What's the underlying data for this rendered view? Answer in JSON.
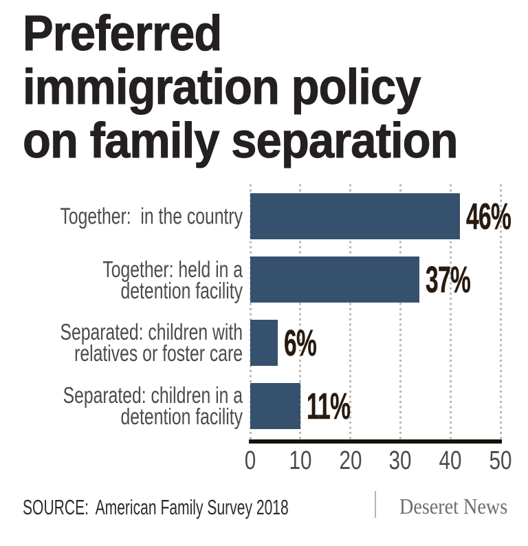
{
  "title": "Preferred\nimmigration policy\non family separation",
  "chart_data": {
    "type": "bar",
    "orientation": "horizontal",
    "title": "Preferred immigration policy on family separation",
    "categories": [
      "Together:  in the country",
      "Together: held in a\ndetention facility",
      "Separated: children with\nrelatives or foster care",
      "Separated: children in a\ndetention facility"
    ],
    "values": [
      46,
      37,
      6,
      11
    ],
    "value_labels": [
      "46%",
      "37%",
      "6%",
      "11%"
    ],
    "xlabel": "",
    "ylabel": "",
    "xlim": [
      0,
      50
    ],
    "x_ticks": [
      0,
      10,
      20,
      30,
      40,
      50
    ],
    "bar_drawn_scale_max": 55,
    "grid": "vertical-dotted",
    "legend": "none"
  },
  "colors": {
    "bar": "#36516e",
    "title_text": "#242022",
    "category_text": "#4e4a47",
    "value_text": "#281a0f",
    "tick_text": "#4e4a47",
    "gridline": "#b9b7b5",
    "axis_line": "#17110c",
    "divider": "#b7b5b3",
    "source_text": "#2e2b28",
    "brand_text": "#6f6d6e",
    "background": "#ffffff"
  },
  "footer": {
    "source_label": "SOURCE:",
    "source_text": "American Family Survey 2018",
    "brand": "Deseret News"
  }
}
